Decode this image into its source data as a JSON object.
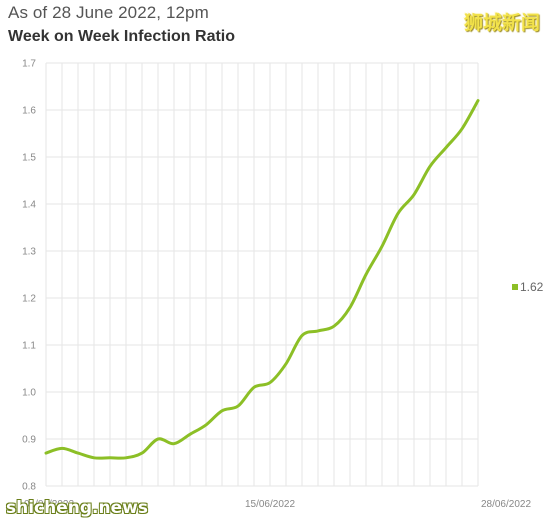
{
  "header": {
    "subtitle": "As of 28 June 2022, 12pm",
    "title": "Week on Week Infection Ratio"
  },
  "watermarks": {
    "top": "狮城新闻",
    "bottom": "shicheng.news"
  },
  "colors": {
    "line": "#8cbf26",
    "grid": "#e6e6e6",
    "tick_text": "#888888"
  },
  "chart_data": {
    "type": "line",
    "x_tick_labels": [
      "01/06/2022",
      "15/06/2022",
      "28/06/2022"
    ],
    "x": [
      "01/06/2022",
      "02/06/2022",
      "03/06/2022",
      "04/06/2022",
      "05/06/2022",
      "06/06/2022",
      "07/06/2022",
      "08/06/2022",
      "09/06/2022",
      "10/06/2022",
      "11/06/2022",
      "12/06/2022",
      "13/06/2022",
      "14/06/2022",
      "15/06/2022",
      "16/06/2022",
      "17/06/2022",
      "18/06/2022",
      "19/06/2022",
      "20/06/2022",
      "21/06/2022",
      "22/06/2022",
      "23/06/2022",
      "24/06/2022",
      "25/06/2022",
      "26/06/2022",
      "27/06/2022",
      "28/06/2022"
    ],
    "series": [
      {
        "values": [
          0.87,
          0.88,
          0.87,
          0.86,
          0.86,
          0.86,
          0.87,
          0.9,
          0.89,
          0.91,
          0.93,
          0.96,
          0.97,
          1.01,
          1.02,
          1.06,
          1.12,
          1.13,
          1.14,
          1.18,
          1.25,
          1.31,
          1.38,
          1.42,
          1.48,
          1.52,
          1.56,
          1.62
        ],
        "last_value_label": "1.62"
      }
    ],
    "ylim": [
      0.8,
      1.7
    ],
    "y_ticks": [
      "0.8",
      "0.9",
      "1.0",
      "1.1",
      "1.2",
      "1.3",
      "1.4",
      "1.5",
      "1.6",
      "1.7"
    ],
    "grid": true,
    "legend_position": "right"
  }
}
